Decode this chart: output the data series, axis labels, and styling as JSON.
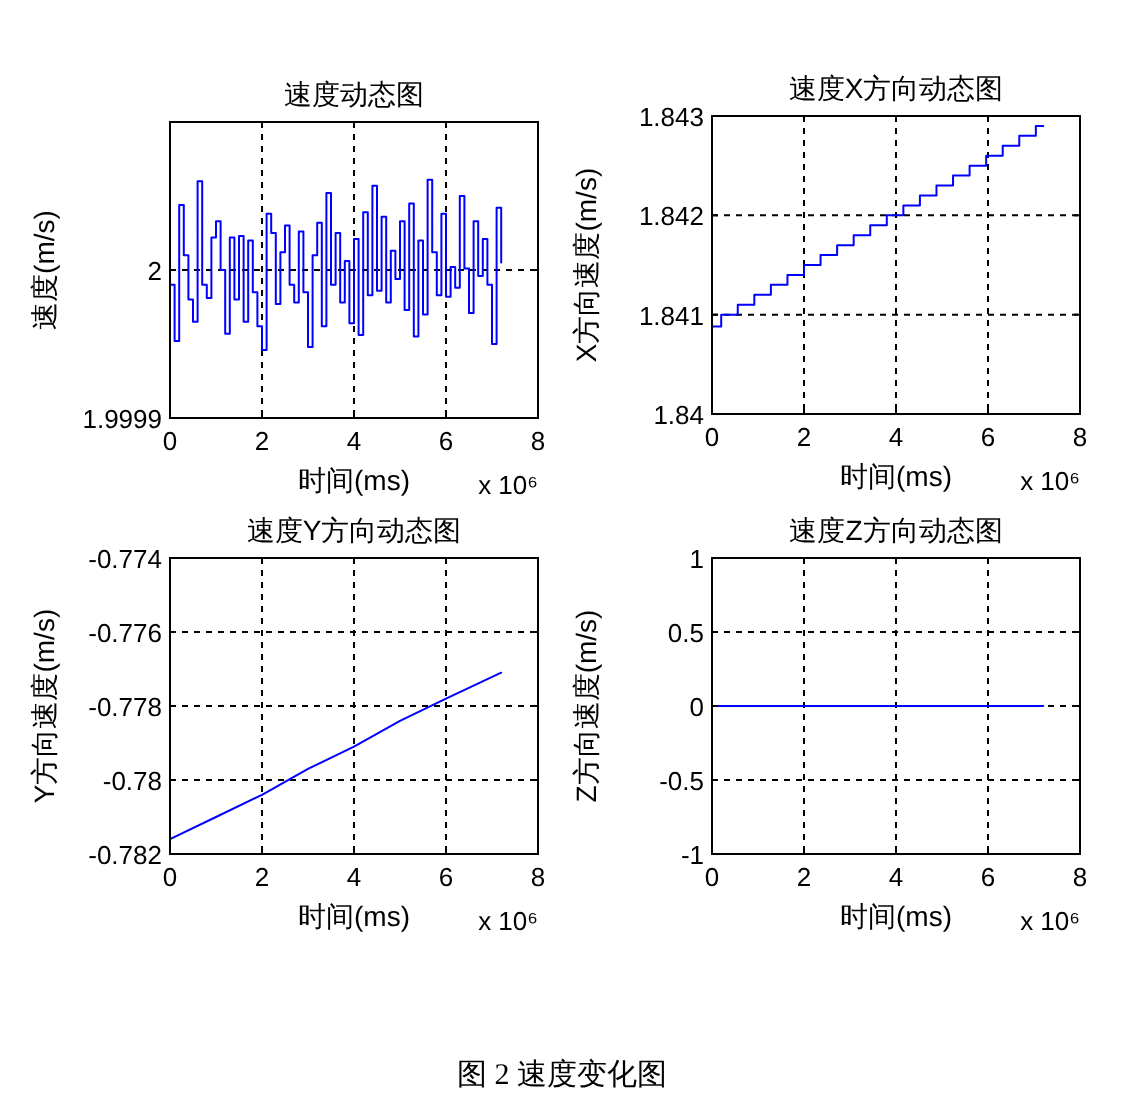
{
  "chart_data": [
    {
      "type": "step",
      "title": "速度动态图",
      "xlabel": "时间(ms)",
      "ylabel": "速度(m/s)",
      "annotations": [
        "x 10⁶"
      ],
      "xlim": [
        0,
        8
      ],
      "xticks": [
        0,
        2,
        4,
        6,
        8
      ],
      "ylim": [
        1.9999,
        2.0001
      ],
      "yticks": [
        1.9999,
        2
      ],
      "grid": true,
      "x": [
        0,
        0.1,
        0.2,
        0.3,
        0.4,
        0.5,
        0.6,
        0.7,
        0.8,
        0.9,
        1.0,
        1.1,
        1.2,
        1.3,
        1.4,
        1.5,
        1.6,
        1.7,
        1.8,
        1.9,
        2.0,
        2.1,
        2.2,
        2.3,
        2.4,
        2.5,
        2.6,
        2.7,
        2.8,
        2.9,
        3.0,
        3.1,
        3.2,
        3.3,
        3.4,
        3.5,
        3.6,
        3.7,
        3.8,
        3.9,
        4.0,
        4.1,
        4.2,
        4.3,
        4.4,
        4.5,
        4.6,
        4.7,
        4.8,
        4.9,
        5.0,
        5.1,
        5.2,
        5.3,
        5.4,
        5.5,
        5.6,
        5.7,
        5.8,
        5.9,
        6.0,
        6.1,
        6.2,
        6.3,
        6.4,
        6.5,
        6.6,
        6.7,
        6.8,
        6.9,
        7.0,
        7.1,
        7.2
      ],
      "series": [
        {
          "color": "#0000ff",
          "values": [
            1.99999,
            1.999952,
            2.000044,
            2.00001,
            1.99998,
            1.999965,
            2.00006,
            1.99999,
            1.999981,
            2.000022,
            2.000033,
            2,
            1.999957,
            2.000022,
            1.99998,
            2.000023,
            1.999965,
            2.00002,
            1.999985,
            1.999962,
            1.999946,
            2.000038,
            2.000025,
            1.999977,
            2.000012,
            2.00003,
            1.99999,
            1.999978,
            2.000026,
            1.999985,
            1.999948,
            2.00001,
            2.000032,
            1.999962,
            2.000052,
            1.99999,
            2.000025,
            1.999978,
            2.000006,
            1.999964,
            2.000021,
            1.999956,
            2.000039,
            1.999983,
            2.000057,
            1.999986,
            2.000036,
            1.999978,
            2.000013,
            1.999994,
            2.000033,
            1.999973,
            2.000045,
            1.999955,
            2.00002,
            1.99997,
            2.000061,
            2.000012,
            1.999983,
            2.000038,
            1.999982,
            2.000002,
            1.999988,
            2.00005,
            2.000001,
            1.999971,
            2.000033,
            1.999996,
            2.000021,
            1.99999,
            1.99995,
            2.000042,
            2.000005
          ]
        }
      ]
    },
    {
      "type": "step",
      "title": "速度X方向动态图",
      "xlabel": "时间(ms)",
      "ylabel": "X方向速度(m/s)",
      "annotations": [
        "x 10⁶"
      ],
      "xlim": [
        0,
        8
      ],
      "xticks": [
        0,
        2,
        4,
        6,
        8
      ],
      "ylim": [
        1.84,
        1.843
      ],
      "yticks": [
        1.84,
        1.841,
        1.842,
        1.843
      ],
      "grid": true,
      "x": [
        0,
        0.2,
        0.56,
        0.92,
        1.28,
        1.64,
        2.0,
        2.36,
        2.72,
        3.08,
        3.44,
        3.8,
        4.16,
        4.52,
        4.88,
        5.24,
        5.6,
        5.96,
        6.32,
        6.68,
        7.04,
        7.2
      ],
      "series": [
        {
          "color": "#0000ff",
          "values": [
            1.84088,
            1.841,
            1.8411,
            1.8412,
            1.8413,
            1.8414,
            1.8415,
            1.8416,
            1.8417,
            1.8418,
            1.8419,
            1.842,
            1.8421,
            1.8422,
            1.8423,
            1.8424,
            1.8425,
            1.8426,
            1.8427,
            1.8428,
            1.8429,
            1.8429
          ]
        }
      ]
    },
    {
      "type": "line",
      "title": "速度Y方向动态图",
      "xlabel": "时间(ms)",
      "ylabel": "Y方向速度(m/s)",
      "annotations": [
        "x 10⁶"
      ],
      "xlim": [
        0,
        8
      ],
      "xticks": [
        0,
        2,
        4,
        6,
        8
      ],
      "ylim": [
        -0.782,
        -0.774
      ],
      "yticks": [
        -0.782,
        -0.78,
        -0.778,
        -0.776,
        -0.774
      ],
      "grid": true,
      "x": [
        0,
        1,
        2,
        3,
        4,
        5,
        6,
        7.2
      ],
      "series": [
        {
          "color": "#0000ff",
          "values": [
            -0.7816,
            -0.781,
            -0.7804,
            -0.7797,
            -0.7791,
            -0.7784,
            -0.7778,
            -0.7771
          ]
        }
      ]
    },
    {
      "type": "line",
      "title": "速度Z方向动态图",
      "xlabel": "时间(ms)",
      "ylabel": "Z方向速度(m/s)",
      "annotations": [
        "x 10⁶"
      ],
      "xlim": [
        0,
        8
      ],
      "xticks": [
        0,
        2,
        4,
        6,
        8
      ],
      "ylim": [
        -1,
        1
      ],
      "yticks": [
        -1,
        -0.5,
        0,
        0.5,
        1
      ],
      "grid": true,
      "x": [
        0,
        7.2
      ],
      "series": [
        {
          "color": "#0000ff",
          "values": [
            0,
            0
          ]
        }
      ]
    },
    {
      "type": "other",
      "title": "图 2 速度变化图"
    }
  ]
}
